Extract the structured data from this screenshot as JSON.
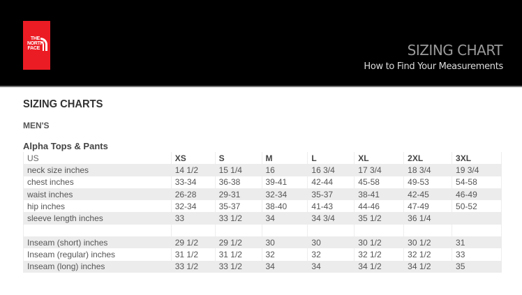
{
  "brand": {
    "logo_text": [
      "THE",
      "NORTH",
      "FACE"
    ],
    "color": "#ec1c24"
  },
  "header": {
    "title": "SIZING CHART",
    "subtitle": "How to Find Your Measurements"
  },
  "section": {
    "title": "SIZING CHARTS",
    "category": "MEN'S",
    "table_title": "Alpha Tops & Pants"
  },
  "table": {
    "columns": [
      "US",
      "XS",
      "S",
      "M",
      "L",
      "XL",
      "2XL",
      "3XL"
    ],
    "rows": [
      [
        "neck size inches",
        "14 1/2",
        "15 1/4",
        "16",
        "16 3/4",
        "17 3/4",
        "18 3/4",
        "19 3/4"
      ],
      [
        "chest inches",
        "33-34",
        "36-38",
        "39-41",
        "42-44",
        "45-58",
        "49-53",
        "54-58"
      ],
      [
        "waist inches",
        "26-28",
        "29-31",
        "32-34",
        "35-37",
        "38-41",
        "42-45",
        "46-49"
      ],
      [
        "hip inches",
        "32-34",
        "35-37",
        "38-40",
        "41-43",
        "44-46",
        "47-49",
        "50-52"
      ],
      [
        "sleeve length inches",
        "33",
        "33 1/2",
        "34",
        "34 3/4",
        "35 1/2",
        "36 1/4",
        ""
      ],
      [
        "",
        "",
        "",
        "",
        "",
        "",
        "",
        ""
      ],
      [
        "Inseam (short) inches",
        "29 1/2",
        "29 1/2",
        "30",
        "30",
        "30 1/2",
        "30 1/2",
        "31"
      ],
      [
        "Inseam (regular) inches",
        "31 1/2",
        "31 1/2",
        "32",
        "32",
        "32 1/2",
        "32 1/2",
        "33"
      ],
      [
        "Inseam (long) inches",
        "33 1/2",
        "33 1/2",
        "34",
        "34",
        "34 1/2",
        "34 1/2",
        "35"
      ]
    ]
  }
}
